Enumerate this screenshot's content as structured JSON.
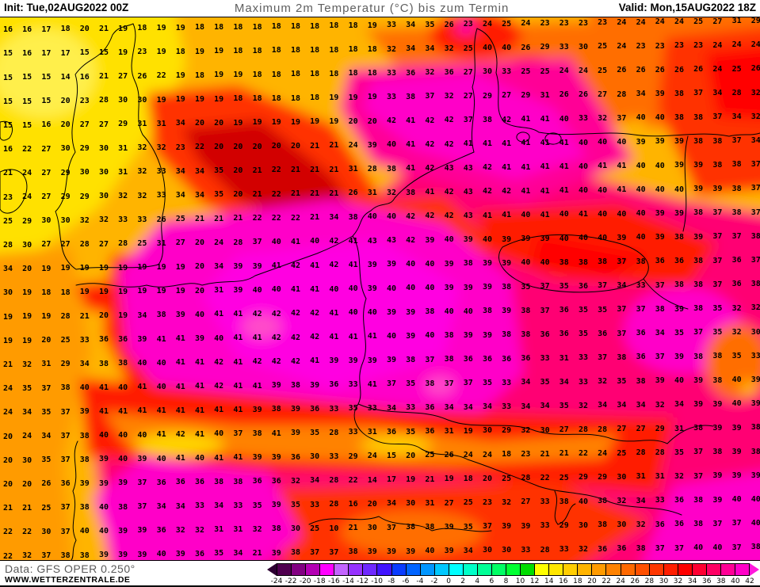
{
  "header": {
    "init_label": "Init: Tue,02AUG2022 00Z",
    "title": "Maximum 2m Temperatur (°C) bis zum Termin",
    "valid_label": "Valid: Mon,15AUG2022 18Z"
  },
  "footer": {
    "data_source": "Data: GFS OPER 0.250°",
    "website": "WWW.WETTERZENTRALE.DE"
  },
  "colorbar": {
    "unit": "°C",
    "tick_labels": [
      "-24",
      "-22",
      "-20",
      "-18",
      "-16",
      "-14",
      "-12",
      "-10",
      "-8",
      "-6",
      "-4",
      "-2",
      "0",
      "2",
      "4",
      "6",
      "8",
      "10",
      "12",
      "14",
      "16",
      "18",
      "20",
      "22",
      "24",
      "26",
      "28",
      "30",
      "32",
      "34",
      "36",
      "38",
      "40",
      "42"
    ],
    "segment_colors": [
      "#500050",
      "#820082",
      "#b400b4",
      "#ff00ff",
      "#c364ff",
      "#9632ff",
      "#6e28ff",
      "#4114ff",
      "#0a3cff",
      "#0064ff",
      "#0096ff",
      "#00c8ff",
      "#00ffff",
      "#00ffc8",
      "#00ff96",
      "#00ff64",
      "#00ff32",
      "#00dc00",
      "#ffff00",
      "#ffe600",
      "#ffcd00",
      "#ffb400",
      "#ff9b00",
      "#ff8200",
      "#ff6900",
      "#ff5000",
      "#ff3700",
      "#ff1e00",
      "#ff0000",
      "#ff0032",
      "#ff0064",
      "#ff0096",
      "#ff00c8"
    ],
    "left_arrow_color": "#2d0032",
    "right_arrow_color": "#ff19dc"
  },
  "map": {
    "palette": {
      "yellow14": "#ffe100",
      "yellowBright": "#ffef4b",
      "yellow16": "#ffcd00",
      "orange18": "#ffb400",
      "orange20": "#ff9b00",
      "orange22": "#ff8200",
      "orange24": "#ff6e00",
      "red28": "#ff3200",
      "red30": "#ff1e00",
      "red32": "#ff0000",
      "darkRed": "#d20000",
      "red34": "#ff0028",
      "crimson37": "#ff0073",
      "pink38": "#ff0096",
      "magenta40": "#ff00c8",
      "magenta42": "#ff00e1",
      "pinkLight": "#ff50c8",
      "yellowAlps": "#ffd700"
    },
    "rows": 23,
    "cols": 40,
    "temperature_grid": [
      [
        16,
        16,
        17,
        18,
        20,
        21,
        19,
        18,
        19,
        19,
        18,
        18,
        18,
        18,
        18,
        18,
        18,
        18,
        18,
        19,
        33,
        34,
        35,
        26,
        23,
        24,
        25,
        24,
        23,
        23,
        23,
        23,
        24,
        24,
        24,
        24,
        25,
        27,
        31,
        29
      ],
      [
        15,
        16,
        17,
        17,
        15,
        15,
        19,
        23,
        19,
        18,
        19,
        19,
        18,
        18,
        18,
        18,
        18,
        18,
        18,
        18,
        32,
        34,
        34,
        32,
        25,
        40,
        40,
        26,
        29,
        33,
        30,
        25,
        24,
        23,
        23,
        23,
        23,
        24,
        24,
        24
      ],
      [
        15,
        15,
        15,
        14,
        16,
        21,
        27,
        26,
        22,
        19,
        18,
        19,
        19,
        18,
        18,
        18,
        18,
        18,
        18,
        18,
        33,
        36,
        32,
        36,
        27,
        30,
        33,
        25,
        25,
        24,
        24,
        25,
        26,
        26,
        26,
        26,
        26,
        24,
        25,
        26
      ],
      [
        15,
        15,
        15,
        20,
        23,
        28,
        30,
        30,
        19,
        19,
        19,
        19,
        18,
        18,
        18,
        18,
        18,
        19,
        19,
        19,
        33,
        38,
        37,
        32,
        27,
        29,
        27,
        29,
        31,
        26,
        26,
        27,
        28,
        34,
        39,
        38,
        37,
        34,
        28,
        32
      ],
      [
        15,
        15,
        16,
        20,
        27,
        27,
        29,
        31,
        31,
        34,
        20,
        20,
        19,
        19,
        19,
        19,
        19,
        19,
        20,
        20,
        42,
        41,
        42,
        42,
        37,
        38,
        42,
        41,
        41,
        40,
        33,
        32,
        37,
        40,
        40,
        38,
        38,
        37,
        34,
        32
      ],
      [
        16,
        22,
        27,
        30,
        29,
        30,
        31,
        32,
        32,
        23,
        22,
        20,
        20,
        20,
        20,
        20,
        21,
        21,
        24,
        39,
        40,
        41,
        42,
        42,
        41,
        41,
        41,
        41,
        41,
        41,
        40,
        40,
        40,
        39,
        39,
        39,
        38,
        38,
        37,
        34
      ],
      [
        21,
        24,
        27,
        29,
        30,
        30,
        31,
        32,
        33,
        34,
        34,
        35,
        20,
        21,
        22,
        21,
        21,
        21,
        31,
        28,
        38,
        41,
        42,
        43,
        43,
        42,
        41,
        41,
        41,
        41,
        40,
        41,
        41,
        40,
        40,
        39,
        39,
        38,
        38,
        37
      ],
      [
        23,
        24,
        27,
        29,
        29,
        30,
        32,
        32,
        33,
        34,
        34,
        35,
        20,
        21,
        22,
        21,
        21,
        21,
        26,
        31,
        32,
        38,
        41,
        42,
        43,
        42,
        42,
        41,
        41,
        41,
        40,
        40,
        41,
        40,
        40,
        40,
        39,
        39,
        38,
        37
      ],
      [
        25,
        29,
        30,
        30,
        32,
        32,
        33,
        33,
        26,
        25,
        21,
        21,
        21,
        22,
        22,
        22,
        21,
        34,
        38,
        40,
        40,
        42,
        42,
        42,
        43,
        41,
        41,
        40,
        41,
        40,
        41,
        40,
        40,
        40,
        39,
        39,
        38,
        37,
        38,
        37
      ],
      [
        28,
        30,
        27,
        27,
        28,
        27,
        28,
        25,
        31,
        27,
        20,
        24,
        28,
        37,
        40,
        41,
        40,
        42,
        41,
        43,
        43,
        42,
        39,
        40,
        39,
        40,
        39,
        39,
        39,
        40,
        40,
        40,
        39,
        40,
        39,
        38,
        39,
        37,
        37,
        38
      ],
      [
        34,
        20,
        19,
        19,
        19,
        19,
        19,
        19,
        19,
        19,
        20,
        34,
        39,
        39,
        41,
        42,
        41,
        42,
        41,
        39,
        39,
        40,
        40,
        39,
        38,
        39,
        39,
        40,
        40,
        38,
        38,
        38,
        37,
        38,
        36,
        36,
        38,
        37,
        36,
        37
      ],
      [
        30,
        19,
        18,
        18,
        19,
        19,
        19,
        19,
        19,
        19,
        20,
        31,
        39,
        40,
        40,
        41,
        41,
        40,
        40,
        39,
        40,
        40,
        40,
        39,
        39,
        39,
        38,
        35,
        37,
        35,
        36,
        37,
        34,
        33,
        37,
        38,
        38,
        37,
        36,
        38
      ],
      [
        19,
        19,
        19,
        28,
        21,
        20,
        19,
        34,
        38,
        39,
        40,
        41,
        41,
        42,
        42,
        42,
        42,
        41,
        40,
        40,
        39,
        39,
        38,
        40,
        40,
        38,
        39,
        38,
        37,
        36,
        35,
        35,
        37,
        37,
        38,
        39,
        38,
        35,
        32,
        32
      ],
      [
        19,
        19,
        20,
        25,
        33,
        36,
        36,
        39,
        41,
        41,
        39,
        40,
        41,
        41,
        42,
        42,
        42,
        41,
        41,
        41,
        40,
        39,
        40,
        38,
        39,
        39,
        38,
        38,
        36,
        36,
        35,
        36,
        37,
        36,
        34,
        35,
        37,
        35,
        32,
        30
      ],
      [
        21,
        32,
        31,
        29,
        34,
        38,
        38,
        40,
        40,
        41,
        41,
        42,
        41,
        42,
        42,
        42,
        41,
        39,
        39,
        39,
        39,
        38,
        37,
        38,
        36,
        36,
        36,
        36,
        33,
        31,
        33,
        37,
        38,
        36,
        37,
        39,
        38,
        38,
        35,
        33
      ],
      [
        24,
        35,
        37,
        38,
        40,
        41,
        40,
        41,
        40,
        41,
        41,
        42,
        41,
        41,
        39,
        38,
        39,
        36,
        33,
        41,
        37,
        35,
        38,
        37,
        37,
        35,
        33,
        34,
        35,
        34,
        33,
        32,
        35,
        38,
        39,
        40,
        39,
        38,
        40,
        39
      ],
      [
        24,
        34,
        35,
        37,
        39,
        41,
        41,
        41,
        41,
        41,
        41,
        41,
        41,
        39,
        38,
        39,
        36,
        33,
        35,
        33,
        34,
        33,
        36,
        34,
        34,
        34,
        33,
        34,
        34,
        35,
        32,
        34,
        34,
        34,
        32,
        34,
        39,
        39,
        40,
        39
      ],
      [
        20,
        24,
        34,
        37,
        38,
        40,
        40,
        40,
        41,
        42,
        41,
        40,
        37,
        38,
        41,
        39,
        35,
        28,
        33,
        31,
        36,
        35,
        36,
        31,
        19,
        30,
        29,
        32,
        30,
        27,
        28,
        28,
        27,
        27,
        29,
        31,
        38,
        39,
        39,
        38
      ],
      [
        20,
        30,
        35,
        37,
        38,
        39,
        40,
        39,
        40,
        41,
        40,
        41,
        41,
        39,
        39,
        36,
        30,
        33,
        29,
        24,
        15,
        20,
        25,
        26,
        24,
        24,
        18,
        23,
        21,
        21,
        22,
        24,
        25,
        28,
        28,
        35,
        37,
        38,
        39,
        38
      ],
      [
        20,
        20,
        26,
        36,
        39,
        39,
        39,
        37,
        36,
        36,
        36,
        38,
        38,
        36,
        36,
        32,
        34,
        28,
        22,
        14,
        17,
        19,
        21,
        19,
        18,
        20,
        25,
        28,
        22,
        25,
        29,
        29,
        30,
        31,
        31,
        32,
        37,
        39,
        39,
        39
      ],
      [
        21,
        21,
        25,
        37,
        38,
        40,
        38,
        37,
        34,
        34,
        33,
        34,
        33,
        35,
        39,
        35,
        33,
        28,
        16,
        20,
        34,
        30,
        31,
        27,
        25,
        23,
        32,
        27,
        33,
        38,
        40,
        38,
        32,
        34,
        33,
        36,
        38,
        39,
        40,
        40
      ],
      [
        22,
        22,
        30,
        37,
        40,
        40,
        39,
        39,
        36,
        32,
        32,
        31,
        31,
        32,
        38,
        30,
        25,
        10,
        21,
        30,
        37,
        38,
        38,
        39,
        35,
        37,
        39,
        39,
        33,
        29,
        30,
        38,
        30,
        32,
        36,
        36,
        38,
        37,
        37,
        40
      ],
      [
        22,
        32,
        37,
        38,
        38,
        39,
        39,
        39,
        40,
        39,
        36,
        35,
        34,
        21,
        39,
        38,
        37,
        37,
        38,
        39,
        39,
        39,
        40,
        39,
        34,
        30,
        30,
        33,
        28,
        33,
        32,
        36,
        36,
        38,
        37,
        37,
        40,
        40,
        37,
        38
      ]
    ]
  }
}
